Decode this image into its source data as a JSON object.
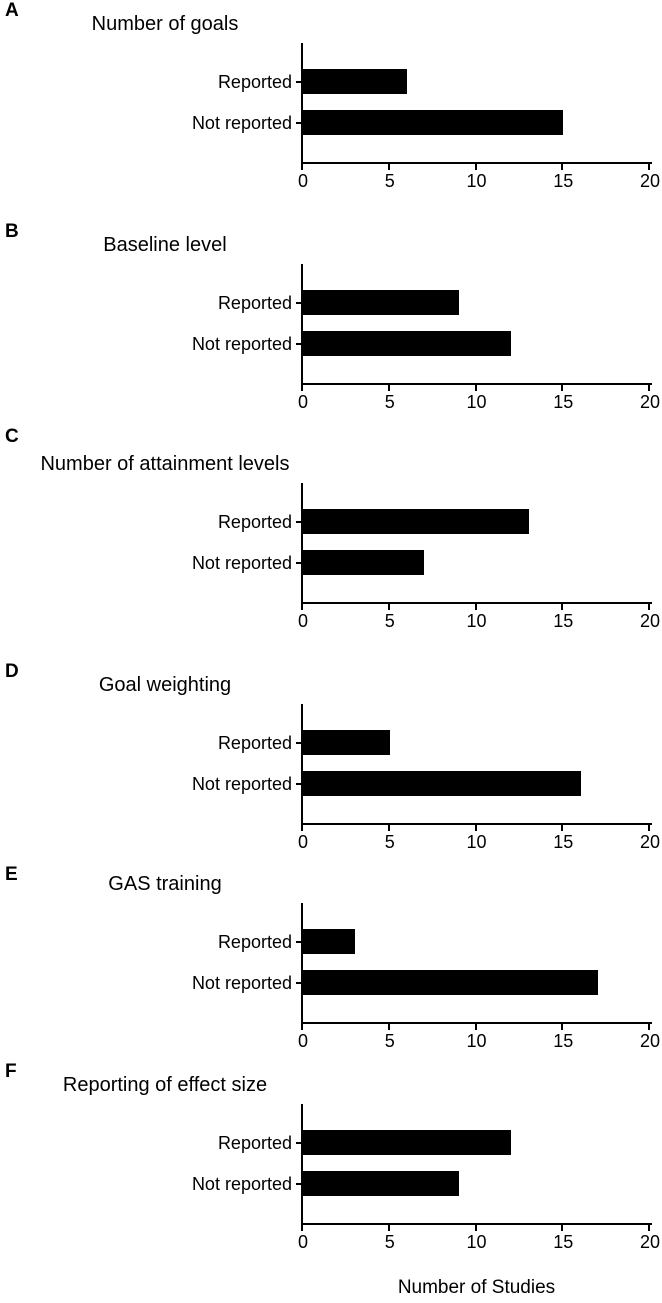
{
  "figure": {
    "xlabel": "Number of Studies",
    "background_color": "#ffffff",
    "text_color": "#000000"
  },
  "chart_data": [
    {
      "type": "bar",
      "orientation": "horizontal",
      "panel_label": "A",
      "title": "Number of goals",
      "categories": [
        "Reported",
        "Not reported"
      ],
      "values": [
        6,
        15
      ],
      "xlim": [
        0,
        20
      ],
      "xticks": [
        0,
        5,
        10,
        15,
        20
      ],
      "bar_color": "#000000",
      "grid": false
    },
    {
      "type": "bar",
      "orientation": "horizontal",
      "panel_label": "B",
      "title": "Baseline level",
      "categories": [
        "Reported",
        "Not reported"
      ],
      "values": [
        9,
        12
      ],
      "xlim": [
        0,
        20
      ],
      "xticks": [
        0,
        5,
        10,
        15,
        20
      ],
      "bar_color": "#000000",
      "grid": false
    },
    {
      "type": "bar",
      "orientation": "horizontal",
      "panel_label": "C",
      "title": "Number of attainment levels",
      "categories": [
        "Reported",
        "Not reported"
      ],
      "values": [
        13,
        7
      ],
      "xlim": [
        0,
        20
      ],
      "xticks": [
        0,
        5,
        10,
        15,
        20
      ],
      "bar_color": "#000000",
      "grid": false
    },
    {
      "type": "bar",
      "orientation": "horizontal",
      "panel_label": "D",
      "title": "Goal weighting",
      "categories": [
        "Reported",
        "Not reported"
      ],
      "values": [
        5,
        16
      ],
      "xlim": [
        0,
        20
      ],
      "xticks": [
        0,
        5,
        10,
        15,
        20
      ],
      "bar_color": "#000000",
      "grid": false
    },
    {
      "type": "bar",
      "orientation": "horizontal",
      "panel_label": "E",
      "title": "GAS training",
      "categories": [
        "Reported",
        "Not reported"
      ],
      "values": [
        3,
        17
      ],
      "xlim": [
        0,
        20
      ],
      "xticks": [
        0,
        5,
        10,
        15,
        20
      ],
      "bar_color": "#000000",
      "grid": false
    },
    {
      "type": "bar",
      "orientation": "horizontal",
      "panel_label": "F",
      "title": "Reporting of effect size",
      "categories": [
        "Reported",
        "Not reported"
      ],
      "values": [
        12,
        9
      ],
      "xlim": [
        0,
        20
      ],
      "xticks": [
        0,
        5,
        10,
        15,
        20
      ],
      "bar_color": "#000000",
      "grid": false
    }
  ]
}
